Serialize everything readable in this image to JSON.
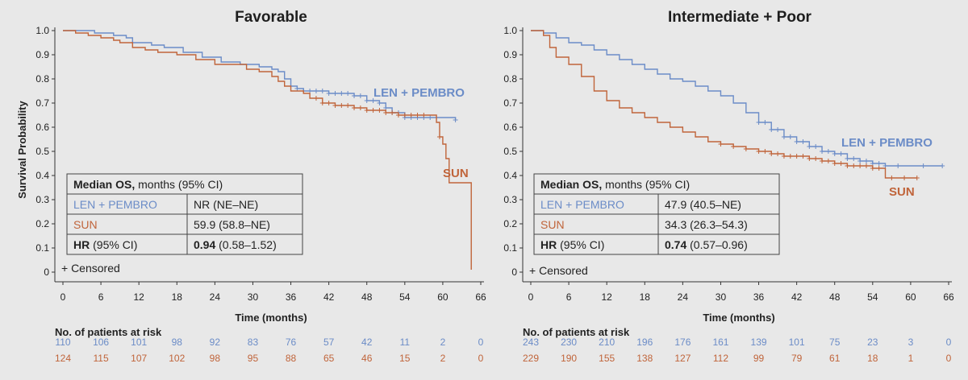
{
  "chart_data": [
    {
      "type": "line",
      "title": "Favorable",
      "xlabel": "Time (months)",
      "ylabel": "Survival Probability",
      "xlim": [
        0,
        66
      ],
      "ylim": [
        0,
        1.0
      ],
      "x_ticks": [
        "0",
        "6",
        "12",
        "18",
        "24",
        "30",
        "36",
        "42",
        "48",
        "54",
        "60",
        "66"
      ],
      "y_ticks": [
        "0",
        "0.1",
        "0.2",
        "0.3",
        "0.4",
        "0.5",
        "0.6",
        "0.7",
        "0.8",
        "0.9",
        "1.0"
      ],
      "series": [
        {
          "name": "LEN + PEMBRO",
          "color": "#6b8cc7",
          "points": [
            [
              0,
              1.0
            ],
            [
              3,
              1.0
            ],
            [
              5,
              0.99
            ],
            [
              8,
              0.98
            ],
            [
              10,
              0.97
            ],
            [
              11,
              0.95
            ],
            [
              14,
              0.94
            ],
            [
              16,
              0.93
            ],
            [
              19,
              0.91
            ],
            [
              22,
              0.89
            ],
            [
              25,
              0.87
            ],
            [
              28,
              0.86
            ],
            [
              31,
              0.85
            ],
            [
              33,
              0.84
            ],
            [
              34,
              0.83
            ],
            [
              35,
              0.8
            ],
            [
              36,
              0.77
            ],
            [
              37,
              0.76
            ],
            [
              38,
              0.75
            ],
            [
              42,
              0.74
            ],
            [
              46,
              0.73
            ],
            [
              48,
              0.71
            ],
            [
              50,
              0.7
            ],
            [
              51,
              0.68
            ],
            [
              52,
              0.66
            ],
            [
              54,
              0.64
            ],
            [
              62,
              0.63
            ]
          ],
          "censor_x": [
            37,
            38,
            39,
            40,
            41,
            42,
            43,
            44,
            45,
            46,
            47,
            48,
            49,
            50,
            51,
            52,
            53,
            54,
            55,
            56,
            57,
            58,
            59,
            62
          ]
        },
        {
          "name": "SUN",
          "color": "#c0643a",
          "points": [
            [
              0,
              1.0
            ],
            [
              2,
              0.99
            ],
            [
              4,
              0.98
            ],
            [
              6,
              0.97
            ],
            [
              8,
              0.96
            ],
            [
              9,
              0.95
            ],
            [
              11,
              0.93
            ],
            [
              13,
              0.92
            ],
            [
              15,
              0.91
            ],
            [
              18,
              0.9
            ],
            [
              21,
              0.88
            ],
            [
              24,
              0.86
            ],
            [
              27,
              0.86
            ],
            [
              29,
              0.84
            ],
            [
              31,
              0.83
            ],
            [
              33,
              0.81
            ],
            [
              34,
              0.79
            ],
            [
              35,
              0.77
            ],
            [
              36,
              0.75
            ],
            [
              38,
              0.74
            ],
            [
              39,
              0.72
            ],
            [
              41,
              0.7
            ],
            [
              43,
              0.69
            ],
            [
              46,
              0.68
            ],
            [
              48,
              0.67
            ],
            [
              51,
              0.66
            ],
            [
              53,
              0.65
            ],
            [
              58,
              0.65
            ],
            [
              59,
              0.62
            ],
            [
              59.5,
              0.56
            ],
            [
              60,
              0.53
            ],
            [
              60.5,
              0.47
            ],
            [
              61,
              0.37
            ],
            [
              64,
              0.37
            ],
            [
              64.5,
              0.01
            ]
          ],
          "censor_x": [
            40,
            41,
            42,
            43,
            44,
            45,
            46,
            47,
            48,
            49,
            50,
            51,
            52,
            53,
            54,
            55,
            56,
            57,
            59.5
          ]
        }
      ],
      "annotations": [
        "LEN + PEMBRO",
        "SUN",
        "+ Censored"
      ],
      "table": {
        "header_bold": "Median OS,",
        "header_rest": " months (95% CI)",
        "rows": [
          {
            "label": "LEN + PEMBRO",
            "value": "NR (NE–NE)"
          },
          {
            "label": "SUN",
            "value": "59.9 (58.8–NE)"
          }
        ],
        "hr_label_bold": "HR",
        "hr_label_rest": " (95% CI)",
        "hr_value_bold": "0.94",
        "hr_value_rest": " (0.58–1.52)"
      },
      "risk": {
        "title": "No. of patients at risk",
        "len_pembro": [
          "110",
          "106",
          "101",
          "98",
          "92",
          "83",
          "76",
          "57",
          "42",
          "11",
          "2",
          "0"
        ],
        "sun": [
          "124",
          "115",
          "107",
          "102",
          "98",
          "95",
          "88",
          "65",
          "46",
          "15",
          "2",
          "0"
        ]
      }
    },
    {
      "type": "line",
      "title": "Intermediate + Poor",
      "xlabel": "Time (months)",
      "ylabel": "",
      "xlim": [
        0,
        66
      ],
      "ylim": [
        0,
        1.0
      ],
      "x_ticks": [
        "0",
        "6",
        "12",
        "18",
        "24",
        "30",
        "36",
        "42",
        "48",
        "54",
        "60",
        "66"
      ],
      "y_ticks": [
        "0",
        "0.1",
        "0.2",
        "0.3",
        "0.4",
        "0.5",
        "0.6",
        "0.7",
        "0.8",
        "0.9",
        "1.0"
      ],
      "series": [
        {
          "name": "LEN + PEMBRO",
          "color": "#6b8cc7",
          "points": [
            [
              0,
              1.0
            ],
            [
              2,
              0.99
            ],
            [
              4,
              0.97
            ],
            [
              6,
              0.95
            ],
            [
              8,
              0.94
            ],
            [
              10,
              0.92
            ],
            [
              12,
              0.9
            ],
            [
              14,
              0.88
            ],
            [
              16,
              0.86
            ],
            [
              18,
              0.84
            ],
            [
              20,
              0.82
            ],
            [
              22,
              0.8
            ],
            [
              24,
              0.79
            ],
            [
              26,
              0.77
            ],
            [
              28,
              0.75
            ],
            [
              30,
              0.73
            ],
            [
              32,
              0.7
            ],
            [
              34,
              0.66
            ],
            [
              36,
              0.62
            ],
            [
              38,
              0.59
            ],
            [
              40,
              0.56
            ],
            [
              42,
              0.54
            ],
            [
              44,
              0.52
            ],
            [
              46,
              0.5
            ],
            [
              48,
              0.49
            ],
            [
              50,
              0.47
            ],
            [
              52,
              0.46
            ],
            [
              54,
              0.45
            ],
            [
              56,
              0.44
            ],
            [
              65,
              0.44
            ]
          ],
          "censor_x": [
            36,
            37,
            38,
            39,
            40,
            41,
            42,
            43,
            44,
            45,
            46,
            47,
            48,
            49,
            50,
            51,
            52,
            53,
            54,
            55,
            56,
            58,
            62,
            65
          ]
        },
        {
          "name": "SUN",
          "color": "#c0643a",
          "points": [
            [
              0,
              1.0
            ],
            [
              2,
              0.98
            ],
            [
              3,
              0.93
            ],
            [
              4,
              0.89
            ],
            [
              6,
              0.86
            ],
            [
              8,
              0.81
            ],
            [
              10,
              0.75
            ],
            [
              12,
              0.71
            ],
            [
              14,
              0.68
            ],
            [
              16,
              0.66
            ],
            [
              18,
              0.64
            ],
            [
              20,
              0.62
            ],
            [
              22,
              0.6
            ],
            [
              24,
              0.58
            ],
            [
              26,
              0.56
            ],
            [
              28,
              0.54
            ],
            [
              30,
              0.53
            ],
            [
              32,
              0.52
            ],
            [
              34,
              0.51
            ],
            [
              36,
              0.5
            ],
            [
              38,
              0.49
            ],
            [
              40,
              0.48
            ],
            [
              44,
              0.47
            ],
            [
              46,
              0.46
            ],
            [
              48,
              0.45
            ],
            [
              50,
              0.44
            ],
            [
              52,
              0.44
            ],
            [
              54,
              0.43
            ],
            [
              56,
              0.39
            ],
            [
              61,
              0.39
            ]
          ],
          "censor_x": [
            30,
            32,
            34,
            36,
            37,
            38,
            39,
            40,
            41,
            42,
            43,
            44,
            45,
            46,
            47,
            48,
            49,
            50,
            51,
            52,
            53,
            54,
            55,
            57,
            59,
            61
          ]
        }
      ],
      "annotations": [
        "LEN + PEMBRO",
        "SUN",
        "+ Censored"
      ],
      "table": {
        "header_bold": "Median OS,",
        "header_rest": " months (95% CI)",
        "rows": [
          {
            "label": "LEN + PEMBRO",
            "value": "47.9 (40.5–NE)"
          },
          {
            "label": "SUN",
            "value": "34.3 (26.3–54.3)"
          }
        ],
        "hr_label_bold": "HR",
        "hr_label_rest": " (95% CI)",
        "hr_value_bold": "0.74",
        "hr_value_rest": " (0.57–0.96)"
      },
      "risk": {
        "title": "No. of patients at risk",
        "len_pembro": [
          "243",
          "230",
          "210",
          "196",
          "176",
          "161",
          "139",
          "101",
          "75",
          "23",
          "3",
          "0"
        ],
        "sun": [
          "229",
          "190",
          "155",
          "138",
          "127",
          "112",
          "99",
          "79",
          "61",
          "18",
          "1",
          "0"
        ]
      }
    }
  ]
}
